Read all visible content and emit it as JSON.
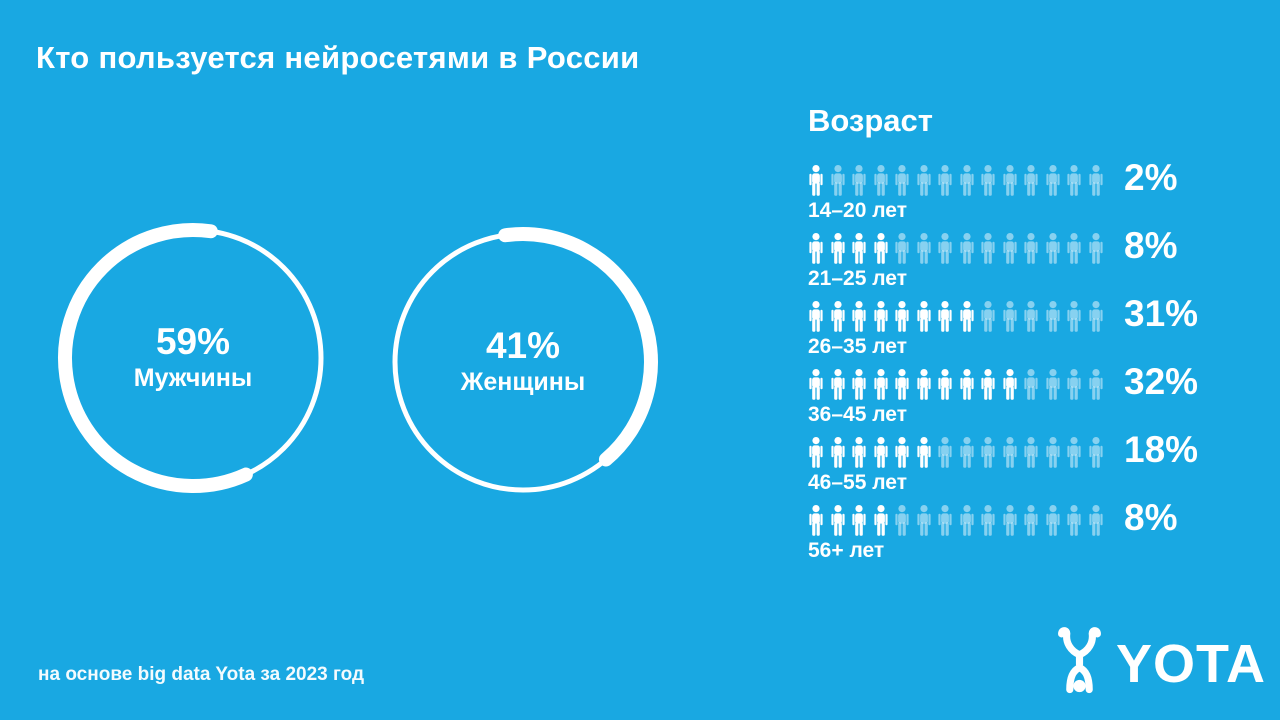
{
  "title": "Кто пользуется нейросетями в России",
  "colors": {
    "background": "#19A8E2",
    "foreground": "#FFFFFF",
    "icon_filled": "#FFFFFF",
    "icon_dim": "rgba(255,255,255,0.48)"
  },
  "gender_donuts": [
    {
      "value": 59,
      "percent_label": "59%",
      "label": "Мужчины"
    },
    {
      "value": 41,
      "percent_label": "41%",
      "label": "Женщины"
    }
  ],
  "age_section": {
    "heading": "Возраст",
    "rows": [
      {
        "label": "14–20 лет",
        "percent_label": "2%",
        "value": 2,
        "filled": 1,
        "total": 14
      },
      {
        "label": "21–25 лет",
        "percent_label": "8%",
        "value": 8,
        "filled": 4,
        "total": 14
      },
      {
        "label": "26–35 лет",
        "percent_label": "31%",
        "value": 31,
        "filled": 8,
        "total": 14
      },
      {
        "label": "36–45 лет",
        "percent_label": "32%",
        "value": 32,
        "filled": 10,
        "total": 14
      },
      {
        "label": "46–55 лет",
        "percent_label": "18%",
        "value": 18,
        "filled": 6,
        "total": 14
      },
      {
        "label": "56+ лет",
        "percent_label": "8%",
        "value": 8,
        "filled": 4,
        "total": 14
      }
    ]
  },
  "footer": {
    "note": "на основе big data Yota за 2023 год",
    "logo_text": "YOTA"
  },
  "chart_data": [
    {
      "type": "pie",
      "style": "donut-rings",
      "title": "Кто пользуется нейросетями в России",
      "unit": "%",
      "series": [
        {
          "name": "Мужчины",
          "value": 59
        },
        {
          "name": "Женщины",
          "value": 41
        }
      ]
    },
    {
      "type": "bar",
      "style": "pictogram",
      "title": "Возраст",
      "unit": "%",
      "categories": [
        "14–20 лет",
        "21–25 лет",
        "26–35 лет",
        "36–45 лет",
        "46–55 лет",
        "56+ лет"
      ],
      "values": [
        2,
        8,
        31,
        32,
        18,
        8
      ],
      "icons_per_row": 14,
      "icons_highlighted": [
        1,
        4,
        8,
        10,
        6,
        4
      ],
      "legend": "off",
      "grid": "off"
    }
  ]
}
